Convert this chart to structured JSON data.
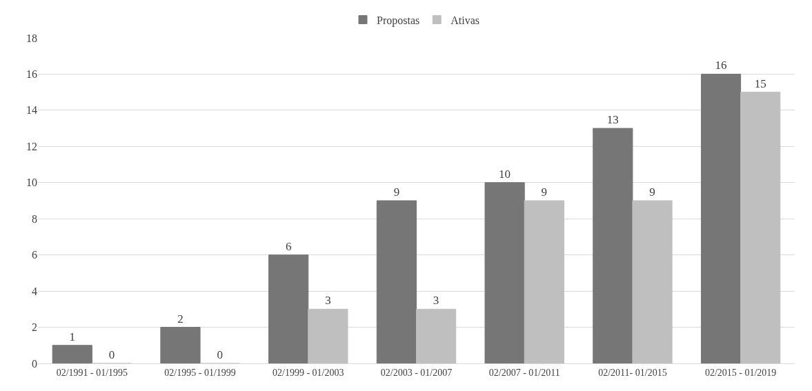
{
  "chart_data": {
    "type": "bar",
    "categories": [
      "02/1991 - 01/1995",
      "02/1995 - 01/1999",
      "02/1999 - 01/2003",
      "02/2003 - 01/2007",
      "02/2007 - 01/2011",
      "02/2011- 01/2015",
      "02/2015 - 01/2019"
    ],
    "series": [
      {
        "name": "Propostas",
        "color": "#767676",
        "values": [
          1,
          2,
          6,
          9,
          10,
          13,
          16
        ]
      },
      {
        "name": "Ativas",
        "color": "#bfbfbf",
        "values": [
          0,
          0,
          3,
          3,
          9,
          9,
          15
        ]
      }
    ],
    "ylim": [
      0,
      18
    ],
    "yticks": [
      0,
      2,
      4,
      6,
      8,
      10,
      12,
      14,
      16,
      18
    ],
    "grid": "y",
    "legend": "top",
    "data_labels": true
  }
}
